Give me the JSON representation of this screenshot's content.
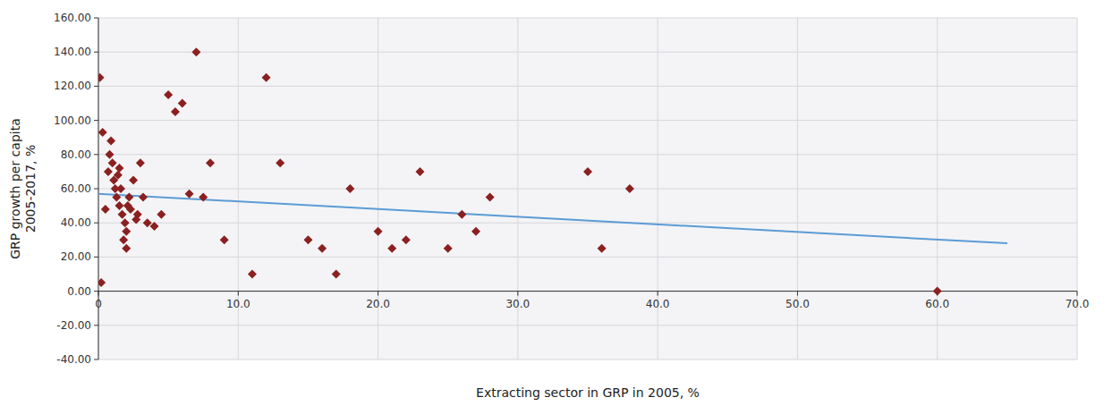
{
  "chart_data": {
    "type": "scatter",
    "xlabel": "Extracting sector in GRP in 2005, %",
    "ylabel": "GRP growth per capita\n2005-2017, %",
    "series": [
      {
        "type": "scatter",
        "color": "#8B2020",
        "marker": "diamond",
        "x": [
          0.1,
          0.2,
          0.3,
          0.5,
          0.7,
          0.8,
          0.9,
          1.0,
          1.1,
          1.2,
          1.3,
          1.4,
          1.5,
          1.5,
          1.6,
          1.7,
          1.8,
          1.9,
          2.0,
          2.0,
          2.1,
          2.2,
          2.3,
          2.5,
          2.7,
          2.8,
          3.0,
          3.2,
          3.5,
          4.0,
          4.5,
          5.0,
          5.5,
          6.0,
          6.5,
          7.0,
          7.5,
          8.0,
          9.0,
          11.0,
          12.0,
          13.0,
          15.0,
          16.0,
          17.0,
          18.0,
          20.0,
          21.0,
          22.0,
          23.0,
          25.0,
          26.0,
          27.0,
          28.0,
          35.0,
          36.0,
          38.0,
          60.0
        ],
        "values": [
          125.0,
          5.0,
          93.0,
          48.0,
          70.0,
          80.0,
          88.0,
          75.0,
          65.0,
          60.0,
          55.0,
          68.0,
          72.0,
          50.0,
          60.0,
          45.0,
          30.0,
          40.0,
          25.0,
          35.0,
          50.0,
          55.0,
          48.0,
          65.0,
          42.0,
          45.0,
          75.0,
          55.0,
          40.0,
          38.0,
          45.0,
          115.0,
          105.0,
          110.0,
          57.0,
          140.0,
          55.0,
          75.0,
          30.0,
          10.0,
          125.0,
          75.0,
          30.0,
          25.0,
          10.0,
          60.0,
          35.0,
          25.0,
          30.0,
          70.0,
          25.0,
          45.0,
          35.0,
          55.0,
          70.0,
          25.0,
          60.0,
          0.0
        ]
      },
      {
        "type": "line",
        "color": "#5B9BD5",
        "line_style": "solid",
        "x": [
          0,
          65
        ],
        "values": [
          57.0,
          28.0
        ]
      }
    ],
    "xlim": [
      0,
      70
    ],
    "ylim": [
      -40,
      160
    ],
    "xticks": [
      0,
      {
        "value": 10.0,
        "label": "10.0"
      },
      {
        "value": 20.0,
        "label": "20.0"
      },
      {
        "value": 30.0,
        "label": "30.0"
      },
      {
        "value": 40.0,
        "label": "40.0"
      },
      {
        "value": 50.0,
        "label": "50.0"
      },
      {
        "value": 60.0,
        "label": "60.0"
      },
      {
        "value": 70.0,
        "label": "70.0"
      }
    ],
    "yticks": [
      {
        "value": -40.0,
        "label": "-40.00"
      },
      {
        "value": -20.0,
        "label": "-20.00"
      },
      {
        "value": 0.0,
        "label": "0.00"
      },
      {
        "value": 20.0,
        "label": "20.00"
      },
      {
        "value": 40.0,
        "label": "40.00"
      },
      {
        "value": 60.0,
        "label": "60.00"
      },
      {
        "value": 80.0,
        "label": "80.00"
      },
      {
        "value": 100.0,
        "label": "100.00"
      },
      {
        "value": 120.0,
        "label": "120.00"
      },
      {
        "value": 140.0,
        "label": "140.00"
      },
      {
        "value": 160.0,
        "label": "160.00"
      }
    ],
    "grid": true
  }
}
